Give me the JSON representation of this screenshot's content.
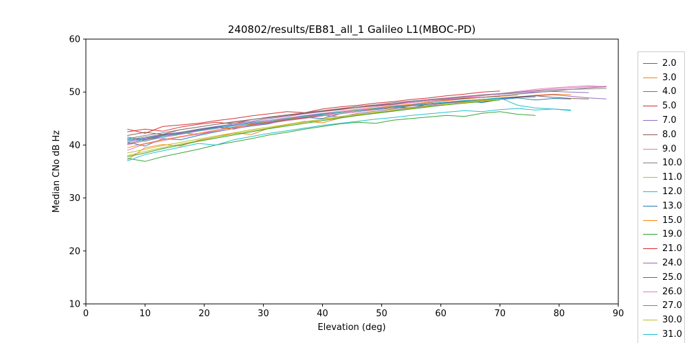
{
  "figure": {
    "title": "240802/results/EB81_all_1 Galileo L1(MBOC-PD)"
  },
  "chart_data": {
    "type": "line",
    "title": "240802/results/EB81_all_1 Galileo L1(MBOC-PD)",
    "xlabel": "Elevation (deg)",
    "ylabel": "Median CNo dB Hz",
    "xlim": [
      0,
      90
    ],
    "ylim": [
      10,
      60
    ],
    "xticks": [
      0,
      10,
      20,
      30,
      40,
      50,
      60,
      70,
      80,
      90
    ],
    "yticks": [
      10,
      20,
      30,
      40,
      50,
      60
    ],
    "grid": false,
    "legend_position": "right-outside",
    "legend_partial_item": {
      "label": "",
      "color": "#1f77b4"
    },
    "series": [
      {
        "name": "2.0",
        "color": "#1f77b4",
        "x0": 7,
        "dx": 3,
        "y": [
          40.5,
          39.8,
          41.2,
          41.0,
          41.8,
          42.5,
          43.1,
          43.6,
          44.0,
          44.8,
          45.2,
          45.0,
          45.9,
          46.3,
          46.8,
          47.2,
          47.0,
          47.8,
          48.1,
          48.3,
          48.0,
          48.6,
          48.9,
          48.5,
          48.8,
          48.7
        ]
      },
      {
        "name": "3.0",
        "color": "#ff7f0e",
        "x0": 7,
        "dx": 3,
        "y": [
          37.2,
          39.5,
          40.1,
          39.8,
          40.9,
          41.5,
          42.3,
          42.0,
          43.2,
          43.8,
          44.5,
          44.2,
          45.1,
          45.6,
          46.0,
          46.4,
          46.9,
          47.3,
          47.6,
          48.0,
          48.4,
          48.8,
          49.1,
          49.4,
          49.6,
          49.5
        ]
      },
      {
        "name": "4.0",
        "color": "#2ca02c",
        "x0": 7,
        "dx": 3,
        "y": [
          37.5,
          36.9,
          37.8,
          38.5,
          39.2,
          40.0,
          40.6,
          41.2,
          41.9,
          42.4,
          43.0,
          43.5,
          44.0,
          44.3,
          44.1,
          44.7,
          45.0,
          45.3,
          45.6,
          45.4,
          46.0,
          46.3,
          45.8,
          45.6
        ]
      },
      {
        "name": "5.0",
        "color": "#d62728",
        "x0": 7,
        "dx": 3,
        "y": [
          43.0,
          42.2,
          43.5,
          43.8,
          44.1,
          44.6,
          45.0,
          45.5,
          45.9,
          46.3,
          46.1,
          46.8,
          47.2,
          47.5,
          47.9,
          48.2,
          48.6,
          48.9,
          49.3,
          49.6,
          50.0,
          50.2
        ]
      },
      {
        "name": "7.0",
        "color": "#9467bd",
        "x0": 7,
        "dx": 3,
        "y": [
          41.5,
          41.0,
          41.8,
          42.3,
          42.0,
          42.8,
          43.4,
          43.9,
          44.3,
          44.8,
          45.2,
          45.6,
          45.3,
          46.0,
          46.4,
          46.8,
          47.1,
          47.5,
          47.9,
          48.2,
          48.5,
          48.8,
          49.0,
          49.3,
          49.5,
          49.2,
          48.9,
          48.7
        ]
      },
      {
        "name": "8.0",
        "color": "#8c564b",
        "x0": 7,
        "dx": 3,
        "y": [
          40.2,
          41.0,
          41.6,
          42.2,
          42.8,
          43.3,
          43.0,
          43.8,
          44.2,
          44.7,
          45.1,
          45.5,
          45.9,
          46.3,
          46.7,
          47.0,
          47.4,
          47.7,
          48.0,
          48.3,
          48.6,
          48.9,
          49.1,
          49.3,
          49.0,
          48.8,
          48.7
        ]
      },
      {
        "name": "9.0",
        "color": "#e377c2",
        "x0": 7,
        "dx": 3,
        "y": [
          39.0,
          40.2,
          40.8,
          41.5,
          42.0,
          42.6,
          43.1,
          43.7,
          44.1,
          44.6,
          45.0,
          45.5,
          45.9,
          46.3,
          46.8,
          47.2,
          47.6,
          48.0,
          48.5,
          48.9,
          49.3,
          49.7,
          50.1,
          50.5,
          50.8,
          51.0,
          51.2,
          51.0
        ]
      },
      {
        "name": "10.0",
        "color": "#7f7f7f",
        "x0": 7,
        "dx": 3,
        "y": [
          41.0,
          41.5,
          42.0,
          42.4,
          43.0,
          43.5,
          43.2,
          44.0,
          44.5,
          44.9,
          45.3,
          45.7,
          46.1,
          46.5,
          46.9,
          47.3,
          47.7,
          48.0,
          48.4,
          48.7,
          49.0,
          49.3,
          49.6,
          49.9,
          50.2,
          50.5,
          50.8,
          51.0
        ]
      },
      {
        "name": "11.0",
        "color": "#bcbd22",
        "x0": 7,
        "dx": 3,
        "y": [
          38.0,
          38.8,
          39.5,
          40.2,
          40.8,
          41.5,
          42.1,
          42.7,
          43.2,
          43.8,
          44.3,
          44.8,
          45.2,
          45.7,
          46.1,
          46.5,
          46.9,
          47.3,
          47.7,
          48.1,
          48.5,
          48.8
        ]
      },
      {
        "name": "12.0",
        "color": "#17becf",
        "x0": 7,
        "dx": 3,
        "y": [
          37.0,
          38.2,
          38.9,
          39.6,
          40.3,
          40.0,
          41.0,
          41.6,
          42.2,
          42.7,
          43.2,
          43.7,
          44.1,
          44.5,
          44.9,
          45.2,
          45.6,
          45.9,
          46.2,
          46.5,
          46.3,
          46.7,
          46.9,
          46.6,
          46.8,
          46.5
        ]
      },
      {
        "name": "13.0",
        "color": "#1f77b4",
        "x0": 7,
        "dx": 3,
        "y": [
          40.8,
          41.3,
          41.9,
          42.4,
          42.9,
          43.4,
          43.8,
          44.3,
          44.7,
          45.1,
          45.5,
          45.9,
          46.2,
          46.6,
          46.9,
          47.2,
          47.5,
          47.8,
          48.1,
          48.4,
          48.6,
          48.8,
          49.0,
          49.1
        ]
      },
      {
        "name": "15.0",
        "color": "#ff7f0e",
        "x0": 7,
        "dx": 3,
        "y": [
          39.5,
          40.3,
          41.0,
          41.6,
          42.2,
          42.8,
          43.3,
          43.9,
          44.4,
          44.9,
          45.3,
          45.8,
          46.2,
          46.6,
          47.0,
          47.4,
          47.7,
          48.1,
          48.4,
          48.7,
          49.0,
          49.2,
          49.4
        ]
      },
      {
        "name": "19.0",
        "color": "#2ca02c",
        "x0": 7,
        "dx": 3,
        "y": [
          37.8,
          38.5,
          39.3,
          40.0,
          40.7,
          41.3,
          41.9,
          42.5,
          43.1,
          43.6,
          44.1,
          44.6,
          45.1,
          45.6,
          46.0,
          46.4,
          46.8,
          47.2,
          47.6,
          47.9,
          48.2,
          48.5
        ]
      },
      {
        "name": "21.0",
        "color": "#d62728",
        "x0": 7,
        "dx": 3,
        "y": [
          42.5,
          43.0,
          42.6,
          43.4,
          43.9,
          44.3,
          44.0,
          44.8,
          45.2,
          45.6,
          46.0,
          46.4,
          46.8,
          47.1,
          47.5,
          47.8,
          48.2,
          48.5,
          48.8,
          49.1,
          49.4,
          49.6
        ]
      },
      {
        "name": "24.0",
        "color": "#9467bd",
        "x0": 7,
        "dx": 3,
        "y": [
          40.5,
          41.2,
          41.8,
          42.4,
          42.9,
          43.5,
          44.0,
          44.5,
          45.0,
          45.4,
          45.9,
          46.3,
          46.7,
          47.1,
          47.5,
          47.8,
          48.2,
          48.5,
          48.8,
          49.1,
          49.4,
          49.6,
          49.8,
          50.0,
          50.1,
          50.0,
          49.9
        ]
      },
      {
        "name": "25.0",
        "color": "#8c564b",
        "x0": 7,
        "dx": 3,
        "y": [
          41.8,
          42.4,
          42.0,
          42.9,
          43.4,
          43.9,
          44.3,
          44.8,
          45.2,
          45.6,
          46.0,
          46.4,
          46.7,
          47.1,
          47.4,
          47.7,
          48.0,
          48.3,
          48.6,
          48.8,
          49.0,
          49.2
        ]
      },
      {
        "name": "26.0",
        "color": "#e377c2",
        "x0": 7,
        "dx": 3,
        "y": [
          40.0,
          40.8,
          41.4,
          42.0,
          42.6,
          43.1,
          43.7,
          44.2,
          44.7,
          45.1,
          45.6,
          46.0,
          46.4,
          46.8,
          47.2,
          47.6,
          48.0,
          48.3,
          48.7,
          49.0,
          49.4,
          49.7,
          50.0,
          50.3,
          50.6,
          50.8,
          51.0,
          51.1
        ]
      },
      {
        "name": "27.0",
        "color": "#7f7f7f",
        "x0": 7,
        "dx": 3,
        "y": [
          41.2,
          41.8,
          42.3,
          42.9,
          43.4,
          43.9,
          44.4,
          44.8,
          45.3,
          45.7,
          46.1,
          46.5,
          46.9,
          47.3,
          47.6,
          48.0,
          48.3,
          48.6,
          48.9,
          49.2,
          49.5,
          49.7,
          50.0,
          50.2,
          50.4,
          50.5,
          50.6,
          50.7
        ]
      },
      {
        "name": "30.0",
        "color": "#bcbd22",
        "x0": 7,
        "dx": 3,
        "y": [
          38.5,
          39.2,
          39.9,
          40.5,
          41.1,
          41.7,
          42.3,
          42.9,
          43.4,
          43.9,
          44.4,
          44.9,
          45.4,
          45.8,
          46.2,
          46.6,
          47.0,
          47.4,
          47.7,
          48.0,
          48.3,
          48.6
        ]
      },
      {
        "name": "31.0",
        "color": "#17becf",
        "x0": 7,
        "dx": 3,
        "y": [
          41.3,
          40.7,
          41.6,
          42.1,
          42.7,
          43.2,
          43.6,
          44.1,
          44.5,
          45.0,
          45.4,
          45.8,
          46.2,
          46.5,
          46.9,
          47.2,
          47.5,
          47.8,
          48.1,
          48.4,
          48.6,
          48.9,
          47.5,
          47.0,
          46.8,
          46.6
        ]
      }
    ]
  }
}
